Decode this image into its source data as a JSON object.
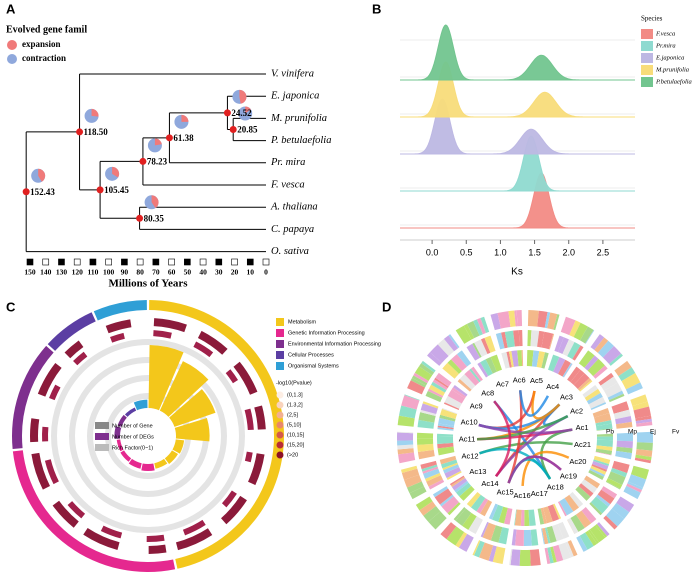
{
  "panels": [
    "A",
    "B",
    "C",
    "D"
  ],
  "chart_data": [
    {
      "type": "tree",
      "legend_title": "Evolved gene famil",
      "legend": [
        {
          "name": "expansion",
          "color": "#f07a7a"
        },
        {
          "name": "contraction",
          "color": "#8fa8dc"
        }
      ],
      "xlabel": "Millions of Years",
      "xlim": [
        150,
        0
      ],
      "xticks": [
        150,
        140,
        130,
        120,
        110,
        100,
        90,
        80,
        70,
        60,
        50,
        40,
        30,
        20,
        10,
        0
      ],
      "tree": {
        "age": 152.43,
        "children": [
          {
            "age": 118.5,
            "age_label": "118.50",
            "children": [
              {
                "name": "V. vinifera"
              },
              {
                "age": 105.45,
                "children": [
                  {
                    "age": 78.23,
                    "children": [
                      {
                        "age": 61.38,
                        "children": [
                          {
                            "age": 24.52,
                            "children": [
                              {
                                "name": "E. japonica"
                              },
                              {
                                "age": 20.85,
                                "children": [
                                  {
                                    "name": "M. prunifolia"
                                  },
                                  {
                                    "name": "P. betulaefolia"
                                  }
                                ]
                              }
                            ]
                          },
                          {
                            "name": "Pr. mira"
                          }
                        ]
                      },
                      {
                        "name": "F. vesca"
                      }
                    ]
                  },
                  {
                    "age": 80.35,
                    "children": [
                      {
                        "name": "A. thaliana"
                      },
                      {
                        "name": "C. papaya"
                      }
                    ]
                  }
                ]
              }
            ]
          },
          {
            "name": "O. sativa"
          }
        ]
      }
    },
    {
      "type": "ridgeline",
      "legend_title": "Species",
      "xlabel": "Ks",
      "xlim": [
        -0.47,
        2.97
      ],
      "xticks": [
        {
          "value": 0,
          "label": "0.0"
        },
        0.5,
        {
          "value": 1,
          "label": "1.0"
        },
        1.5,
        {
          "value": 2,
          "label": "2.0"
        },
        2.5
      ],
      "series": [
        {
          "name": "F.vesca",
          "color": "#f28b85",
          "values": [
            1.6
          ]
        },
        {
          "name": "Pr.mira",
          "color": "#8fdad0",
          "values": [
            1.45
          ]
        },
        {
          "name": "E.japonica",
          "color": "#bdb8e3",
          "values": [
            0.15,
            1.45
          ]
        },
        {
          "name": "M.prunifolia",
          "color": "#f8dc7a",
          "values": [
            0.2,
            1.65
          ]
        },
        {
          "name": "P.betulaefolia",
          "color": "#72c58f",
          "values": [
            0.2,
            1.6
          ]
        }
      ]
    },
    {
      "type": "circos-enrichment",
      "categories": [
        "Metabolism",
        "Genetic Information Processing",
        "Environmental Information Processing",
        "Cellular Processes",
        "Organismal Systems"
      ],
      "colors": [
        "#f3c71b",
        "#e5288f",
        "#7e2f8e",
        "#5b3ea3",
        "#2f9fd6"
      ],
      "term_counts": [
        7,
        4,
        2,
        1,
        1
      ],
      "rich_factor": [
        0.9,
        0.78,
        0.62,
        0.48,
        0.12,
        0.1,
        0.08,
        0.1,
        0.08,
        0.06,
        0.05,
        0.08,
        0.06,
        0.05,
        0.12
      ],
      "pvalue_title": "-log10(Pvalue)",
      "pvalue_bins": [
        "(0,1.3]",
        "(1.3,2]",
        "(2,5]",
        "(5,10]",
        "(10,15]",
        "(15,20]",
        "(>20"
      ],
      "inner_legend": [
        "Number of Gene",
        "Number of DEGs",
        "Rich Factor(0~1)"
      ]
    },
    {
      "type": "circos-synteny",
      "chromosomes": [
        "Ac1",
        "Ac2",
        "Ac3",
        "Ac4",
        "Ac5",
        "Ac6",
        "Ac7",
        "Ac8",
        "Ac9",
        "Ac10",
        "Ac11",
        "Ac12",
        "Ac13",
        "Ac14",
        "Ac15",
        "Ac16",
        "Ac17",
        "Ac18",
        "Ac19",
        "Ac20",
        "Ac21"
      ],
      "species": [
        "Pb",
        "Mp",
        "Ej",
        "Fv"
      ]
    }
  ]
}
